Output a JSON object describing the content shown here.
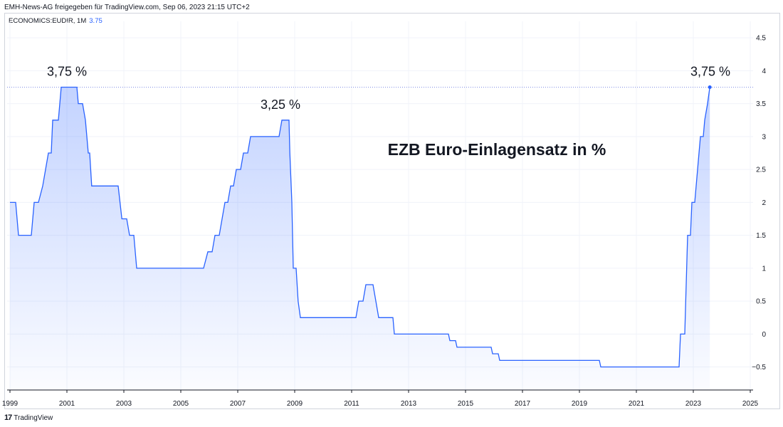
{
  "header": {
    "credit": "EMH-News-AG freigegeben für TradingView.com, Sep 06, 2023 21:15 UTC+2",
    "symbol": "ECONOMICS:EUDIR, 1M",
    "last_value": "3.75"
  },
  "footer": {
    "logo_mark": "17",
    "logo_text": "TradingView"
  },
  "colors": {
    "line": "#2962ff",
    "fill": "#2962ff",
    "grid": "#f0f3fa",
    "axis_text": "#131722",
    "ref_line": "#5b6bdb"
  },
  "chart_data": {
    "type": "area",
    "title": "EZB Euro-Einlagensatz in %",
    "xlabel": "",
    "ylabel": "",
    "ylim": [
      -0.85,
      4.75
    ],
    "xlim": [
      1998.9,
      2025.1
    ],
    "x_ticks": [
      "1999",
      "2001",
      "2003",
      "2005",
      "2007",
      "2009",
      "2011",
      "2013",
      "2015",
      "2017",
      "2019",
      "2021",
      "2023",
      "2025"
    ],
    "y_ticks": [
      "4.5",
      "4",
      "3.5",
      "3",
      "2.5",
      "2",
      "1.5",
      "1",
      "0.5",
      "0",
      "−0.5"
    ],
    "annotations": [
      {
        "text": "3,75 %",
        "x": 2001.0,
        "y": 3.75
      },
      {
        "text": "3,25 %",
        "x": 2008.5,
        "y": 3.25
      },
      {
        "text": "3,75 %",
        "x": 2023.6,
        "y": 3.75
      }
    ],
    "reference_line": {
      "y": 3.75,
      "style": "dotted"
    },
    "series": [
      {
        "points": [
          [
            1999.0,
            2.0
          ],
          [
            1999.2,
            2.0
          ],
          [
            1999.3,
            1.5
          ],
          [
            1999.75,
            1.5
          ],
          [
            1999.85,
            2.0
          ],
          [
            2000.0,
            2.0
          ],
          [
            2000.15,
            2.25
          ],
          [
            2000.25,
            2.5
          ],
          [
            2000.35,
            2.75
          ],
          [
            2000.45,
            2.75
          ],
          [
            2000.5,
            3.25
          ],
          [
            2000.7,
            3.25
          ],
          [
            2000.8,
            3.75
          ],
          [
            2001.35,
            3.75
          ],
          [
            2001.4,
            3.5
          ],
          [
            2001.55,
            3.5
          ],
          [
            2001.65,
            3.25
          ],
          [
            2001.7,
            3.0
          ],
          [
            2001.75,
            2.75
          ],
          [
            2001.8,
            2.75
          ],
          [
            2001.87,
            2.25
          ],
          [
            2002.8,
            2.25
          ],
          [
            2002.93,
            1.75
          ],
          [
            2003.1,
            1.75
          ],
          [
            2003.2,
            1.5
          ],
          [
            2003.35,
            1.5
          ],
          [
            2003.45,
            1.0
          ],
          [
            2005.8,
            1.0
          ],
          [
            2005.95,
            1.25
          ],
          [
            2006.1,
            1.25
          ],
          [
            2006.2,
            1.5
          ],
          [
            2006.35,
            1.5
          ],
          [
            2006.45,
            1.75
          ],
          [
            2006.55,
            2.0
          ],
          [
            2006.65,
            2.0
          ],
          [
            2006.75,
            2.25
          ],
          [
            2006.85,
            2.25
          ],
          [
            2006.95,
            2.5
          ],
          [
            2007.1,
            2.5
          ],
          [
            2007.2,
            2.75
          ],
          [
            2007.35,
            2.75
          ],
          [
            2007.45,
            3.0
          ],
          [
            2008.45,
            3.0
          ],
          [
            2008.55,
            3.25
          ],
          [
            2008.8,
            3.25
          ],
          [
            2008.83,
            2.75
          ],
          [
            2008.9,
            2.0
          ],
          [
            2008.95,
            1.0
          ],
          [
            2009.05,
            1.0
          ],
          [
            2009.12,
            0.5
          ],
          [
            2009.2,
            0.25
          ],
          [
            2011.15,
            0.25
          ],
          [
            2011.25,
            0.5
          ],
          [
            2011.4,
            0.5
          ],
          [
            2011.5,
            0.75
          ],
          [
            2011.75,
            0.75
          ],
          [
            2011.85,
            0.5
          ],
          [
            2011.95,
            0.25
          ],
          [
            2012.45,
            0.25
          ],
          [
            2012.5,
            0.0
          ],
          [
            2014.4,
            0.0
          ],
          [
            2014.45,
            -0.1
          ],
          [
            2014.65,
            -0.1
          ],
          [
            2014.7,
            -0.2
          ],
          [
            2015.9,
            -0.2
          ],
          [
            2015.95,
            -0.3
          ],
          [
            2016.15,
            -0.3
          ],
          [
            2016.2,
            -0.4
          ],
          [
            2019.7,
            -0.4
          ],
          [
            2019.75,
            -0.5
          ],
          [
            2022.5,
            -0.5
          ],
          [
            2022.55,
            0.0
          ],
          [
            2022.7,
            0.0
          ],
          [
            2022.75,
            0.75
          ],
          [
            2022.8,
            1.5
          ],
          [
            2022.9,
            1.5
          ],
          [
            2022.95,
            2.0
          ],
          [
            2023.05,
            2.0
          ],
          [
            2023.15,
            2.5
          ],
          [
            2023.25,
            3.0
          ],
          [
            2023.35,
            3.0
          ],
          [
            2023.4,
            3.25
          ],
          [
            2023.5,
            3.5
          ],
          [
            2023.58,
            3.75
          ]
        ]
      }
    ]
  }
}
